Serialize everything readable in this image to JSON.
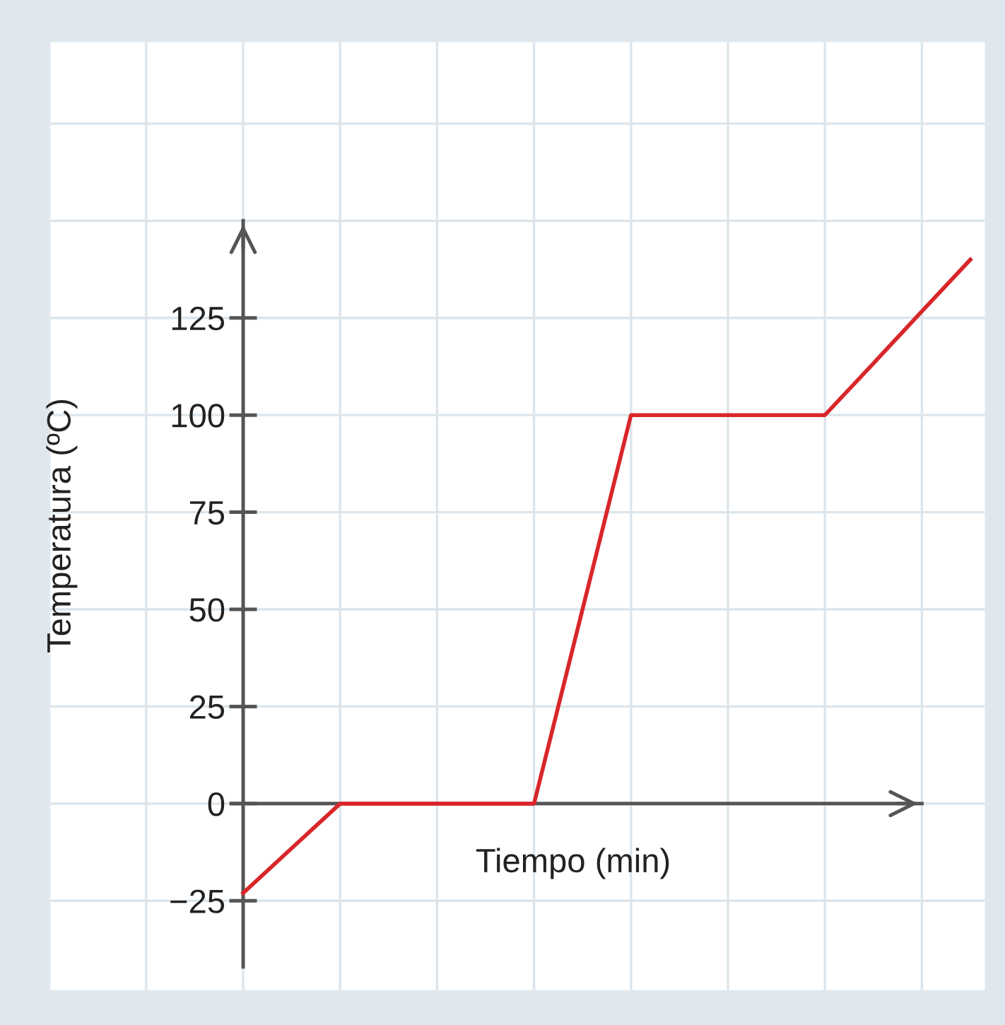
{
  "chart_data": {
    "type": "line",
    "xlabel": "Tiempo (min)",
    "ylabel": "Temperatura (ºC)",
    "categories": [
      null,
      null,
      null,
      null,
      null,
      null,
      null,
      null,
      null,
      null,
      null,
      null,
      null,
      null,
      null,
      null
    ],
    "series": [
      {
        "color": "#d9262a",
        "values": [
          -23,
          -11.5,
          0,
          0,
          0,
          0,
          0,
          50,
          100,
          100,
          100,
          100,
          100,
          113.3,
          126.7,
          140
        ]
      }
    ],
    "ylim": [
      -48,
      196
    ],
    "yticks": [
      -25,
      0,
      25,
      50,
      75,
      100,
      125,
      {
        "value": 150,
        "label": null
      },
      {
        "value": 175,
        "label": null
      }
    ],
    "grid": true,
    "marker": "none",
    "line_style": "solid"
  }
}
